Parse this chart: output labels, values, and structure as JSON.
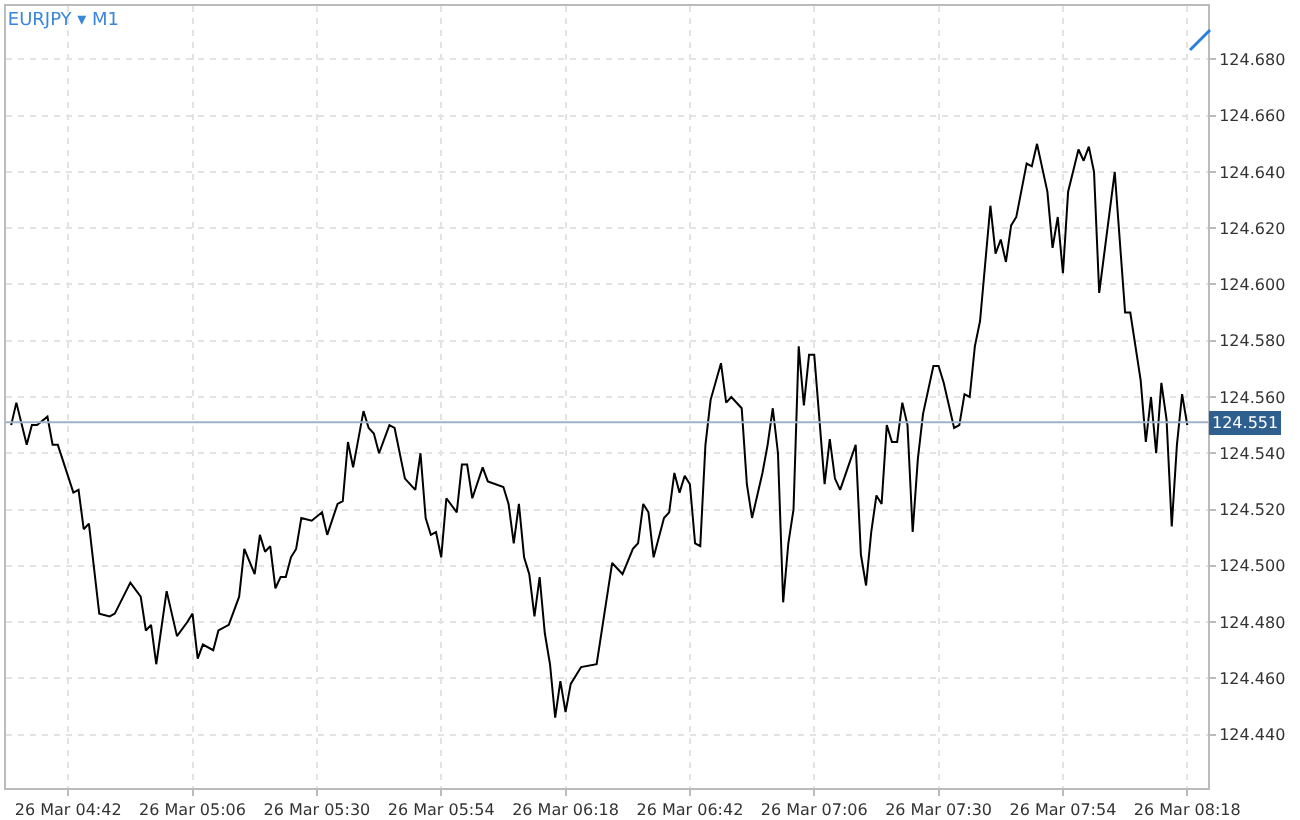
{
  "chart_data": {
    "type": "line",
    "title": "EURJPY ▾ M1",
    "x": [
      "--03-26T04:31",
      "--03-26T04:32",
      "--03-26T04:34",
      "--03-26T04:35",
      "--03-26T04:36",
      "--03-26T04:38",
      "--03-26T04:39",
      "--03-26T04:40",
      "--03-26T04:43",
      "--03-26T04:44",
      "--03-26T04:45",
      "--03-26T04:46",
      "--03-26T04:48",
      "--03-26T04:50",
      "--03-26T04:51",
      "--03-26T04:54",
      "--03-26T04:56",
      "--03-26T04:57",
      "--03-26T04:58",
      "--03-26T04:59",
      "--03-26T05:01",
      "--03-26T05:03",
      "--03-26T05:05",
      "--03-26T05:06",
      "--03-26T05:07",
      "--03-26T05:08",
      "--03-26T05:10",
      "--03-26T05:11",
      "--03-26T05:13",
      "--03-26T05:15",
      "--03-26T05:16",
      "--03-26T05:18",
      "--03-26T05:19",
      "--03-26T05:20",
      "--03-26T05:21",
      "--03-26T05:22",
      "--03-26T05:23",
      "--03-26T05:24",
      "--03-26T05:25",
      "--03-26T05:26",
      "--03-26T05:27",
      "--03-26T05:29",
      "--03-26T05:31",
      "--03-26T05:32",
      "--03-26T05:34",
      "--03-26T05:35",
      "--03-26T05:36",
      "--03-26T05:37",
      "--03-26T05:39",
      "--03-26T05:40",
      "--03-26T05:41",
      "--03-26T05:42",
      "--03-26T05:44",
      "--03-26T05:45",
      "--03-26T05:47",
      "--03-26T05:49",
      "--03-26T05:50",
      "--03-26T05:51",
      "--03-26T05:52",
      "--03-26T05:53",
      "--03-26T05:54",
      "--03-26T05:55",
      "--03-26T05:57",
      "--03-26T05:58",
      "--03-26T05:59",
      "--03-26T06:00",
      "--03-26T06:02",
      "--03-26T06:03",
      "--03-26T06:06",
      "--03-26T06:07",
      "--03-26T06:08",
      "--03-26T06:09",
      "--03-26T06:10",
      "--03-26T06:11",
      "--03-26T06:12",
      "--03-26T06:13",
      "--03-26T06:14",
      "--03-26T06:15",
      "--03-26T06:16",
      "--03-26T06:17",
      "--03-26T06:18",
      "--03-26T06:19",
      "--03-26T06:21",
      "--03-26T06:24",
      "--03-26T06:27",
      "--03-26T06:29",
      "--03-26T06:31",
      "--03-26T06:32",
      "--03-26T06:33",
      "--03-26T06:34",
      "--03-26T06:35",
      "--03-26T06:37",
      "--03-26T06:38",
      "--03-26T06:39",
      "--03-26T06:40",
      "--03-26T06:41",
      "--03-26T06:42",
      "--03-26T06:43",
      "--03-26T06:44",
      "--03-26T06:45",
      "--03-26T06:46",
      "--03-26T06:48",
      "--03-26T06:49",
      "--03-26T06:50",
      "--03-26T06:52",
      "--03-26T06:53",
      "--03-26T06:54",
      "--03-26T06:56",
      "--03-26T06:57",
      "--03-26T06:58",
      "--03-26T06:59",
      "--03-26T07:00",
      "--03-26T07:01",
      "--03-26T07:02",
      "--03-26T07:03",
      "--03-26T07:04",
      "--03-26T07:05",
      "--03-26T07:06",
      "--03-26T07:08",
      "--03-26T07:09",
      "--03-26T07:10",
      "--03-26T07:11",
      "--03-26T07:14",
      "--03-26T07:15",
      "--03-26T07:16",
      "--03-26T07:17",
      "--03-26T07:18",
      "--03-26T07:19",
      "--03-26T07:20",
      "--03-26T07:21",
      "--03-26T07:22",
      "--03-26T07:23",
      "--03-26T07:24",
      "--03-26T07:25",
      "--03-26T07:26",
      "--03-26T07:27",
      "--03-26T07:29",
      "--03-26T07:30",
      "--03-26T07:31",
      "--03-26T07:33",
      "--03-26T07:34",
      "--03-26T07:35",
      "--03-26T07:36",
      "--03-26T07:37",
      "--03-26T07:38",
      "--03-26T07:40",
      "--03-26T07:41",
      "--03-26T07:42",
      "--03-26T07:43",
      "--03-26T07:44",
      "--03-26T07:45",
      "--03-26T07:47",
      "--03-26T07:48",
      "--03-26T07:49",
      "--03-26T07:51",
      "--03-26T07:52",
      "--03-26T07:53",
      "--03-26T07:54",
      "--03-26T07:55",
      "--03-26T07:57",
      "--03-26T07:58",
      "--03-26T07:59",
      "--03-26T08:00",
      "--03-26T08:01",
      "--03-26T08:04",
      "--03-26T08:06",
      "--03-26T08:07",
      "--03-26T08:09",
      "--03-26T08:10",
      "--03-26T08:11",
      "--03-26T08:12",
      "--03-26T08:13",
      "--03-26T08:14",
      "--03-26T08:15",
      "--03-26T08:16",
      "--03-26T08:17",
      "--03-26T08:18"
    ],
    "series": [
      {
        "color": "#000000",
        "values": [
          124.55,
          124.558,
          124.543,
          124.55,
          124.55,
          124.553,
          124.543,
          124.543,
          124.526,
          124.527,
          124.513,
          124.515,
          124.483,
          124.482,
          124.483,
          124.494,
          124.489,
          124.477,
          124.479,
          124.465,
          124.491,
          124.475,
          124.48,
          124.483,
          124.467,
          124.472,
          124.47,
          124.477,
          124.479,
          124.489,
          124.506,
          124.497,
          124.511,
          124.505,
          124.507,
          124.492,
          124.496,
          124.496,
          124.503,
          124.506,
          124.517,
          124.516,
          124.519,
          124.511,
          124.522,
          124.523,
          124.544,
          124.535,
          124.555,
          124.549,
          124.547,
          124.54,
          124.55,
          124.549,
          124.531,
          124.527,
          124.54,
          124.517,
          124.511,
          124.512,
          124.503,
          124.524,
          124.519,
          124.536,
          124.536,
          124.524,
          124.535,
          124.53,
          124.528,
          124.522,
          124.508,
          124.522,
          124.503,
          124.497,
          124.482,
          124.496,
          124.476,
          124.465,
          124.446,
          124.459,
          124.448,
          124.458,
          124.464,
          124.465,
          124.501,
          124.497,
          124.506,
          124.508,
          124.522,
          124.519,
          124.503,
          124.517,
          124.519,
          124.533,
          124.526,
          124.532,
          124.529,
          124.508,
          124.507,
          124.543,
          124.559,
          124.572,
          124.558,
          124.56,
          124.556,
          124.529,
          124.517,
          124.533,
          124.543,
          124.556,
          124.54,
          124.487,
          124.508,
          124.52,
          124.578,
          124.557,
          124.575,
          124.575,
          124.529,
          124.545,
          124.531,
          124.527,
          124.543,
          124.504,
          124.493,
          124.512,
          124.525,
          124.522,
          124.55,
          124.544,
          124.544,
          124.558,
          124.55,
          124.512,
          124.538,
          124.554,
          124.571,
          124.571,
          124.565,
          124.549,
          124.55,
          124.561,
          124.56,
          124.578,
          124.587,
          124.628,
          124.611,
          124.616,
          124.608,
          124.621,
          124.624,
          124.643,
          124.642,
          124.65,
          124.633,
          124.613,
          124.624,
          124.604,
          124.633,
          124.648,
          124.644,
          124.649,
          124.64,
          124.597,
          124.64,
          124.59,
          124.59,
          124.566,
          124.544,
          124.56,
          124.54,
          124.565,
          124.552,
          124.514,
          124.543,
          124.561,
          124.55
        ]
      }
    ],
    "xlim": [
      "--03-26T04:30",
      "--03-26T08:22"
    ],
    "xticks": [
      {
        "value": "--03-26T04:42",
        "label": "26 Mar 04:42"
      },
      {
        "value": "--03-26T05:06",
        "label": "26 Mar 05:06"
      },
      {
        "value": "--03-26T05:30",
        "label": "26 Mar 05:30"
      },
      {
        "value": "--03-26T05:54",
        "label": "26 Mar 05:54"
      },
      {
        "value": "--03-26T06:18",
        "label": "26 Mar 06:18"
      },
      {
        "value": "--03-26T06:42",
        "label": "26 Mar 06:42"
      },
      {
        "value": "--03-26T07:06",
        "label": "26 Mar 07:06"
      },
      {
        "value": "--03-26T07:30",
        "label": "26 Mar 07:30"
      },
      {
        "value": "--03-26T07:54",
        "label": "26 Mar 07:54"
      },
      {
        "value": "--03-26T08:18",
        "label": "26 Mar 08:18"
      }
    ],
    "ylim": [
      124.421,
      124.699
    ],
    "yticks": [
      {
        "value": 124.44,
        "label": "124.440"
      },
      {
        "value": 124.46,
        "label": "124.460"
      },
      {
        "value": 124.48,
        "label": "124.480"
      },
      {
        "value": 124.5,
        "label": "124.500"
      },
      {
        "value": 124.52,
        "label": "124.520"
      },
      {
        "value": 124.54,
        "label": "124.540"
      },
      {
        "value": 124.56,
        "label": "124.560"
      },
      {
        "value": 124.58,
        "label": "124.580"
      },
      {
        "value": 124.6,
        "label": "124.600"
      },
      {
        "value": 124.62,
        "label": "124.620"
      },
      {
        "value": 124.64,
        "label": "124.640"
      },
      {
        "value": 124.66,
        "label": "124.660"
      },
      {
        "value": 124.68,
        "label": "124.680"
      }
    ],
    "ref_lines": [
      {
        "axis": "y",
        "value": 124.551,
        "label": "124.551",
        "color": "#9fb3c8"
      }
    ],
    "grid": true,
    "legend": false,
    "marker": "none",
    "line_style": "solid"
  }
}
